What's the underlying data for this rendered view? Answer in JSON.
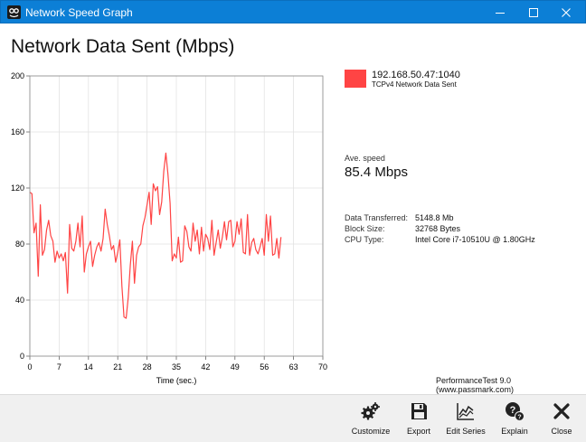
{
  "window": {
    "title": "Network Speed Graph"
  },
  "header": {
    "title": "Network Data Sent (Mbps)"
  },
  "legend": {
    "connection": "192.168.50.47:1040",
    "series": "TCPv4 Network Data Sent",
    "color": "#ff4444"
  },
  "summary": {
    "ave_label": "Ave. speed",
    "ave_value": "85.4 Mbps"
  },
  "stats": [
    {
      "key": "Data Transferred:",
      "value": "5148.8 Mb"
    },
    {
      "key": "Block Size:",
      "value": "32768 Bytes"
    },
    {
      "key": "CPU Type:",
      "value": "Intel Core i7-10510U @ 1.80GHz"
    }
  ],
  "credit": "PerformanceTest 9.0 (www.passmark.com)",
  "toolbar": {
    "customize": "Customize",
    "export": "Export",
    "edit_series": "Edit Series",
    "explain": "Explain",
    "close": "Close"
  },
  "chart_data": {
    "type": "line",
    "xlabel": "Time (sec.)",
    "ylabel": "",
    "xlim": [
      0,
      70
    ],
    "ylim": [
      0,
      200
    ],
    "xticks": [
      0,
      7,
      14,
      21,
      28,
      35,
      42,
      49,
      56,
      63,
      70
    ],
    "yticks": [
      0,
      40,
      80,
      120,
      160,
      200
    ],
    "grid": true,
    "series": [
      {
        "name": "TCPv4 Network Data Sent",
        "color": "#ff4444",
        "x": [
          0,
          0.5,
          1,
          1.5,
          2,
          2.5,
          3,
          3.5,
          4,
          4.5,
          5,
          5.5,
          6,
          6.5,
          7,
          7.5,
          8,
          8.5,
          9,
          9.5,
          10,
          10.5,
          11,
          11.5,
          12,
          12.5,
          13,
          13.5,
          14,
          14.5,
          15,
          15.5,
          16,
          16.5,
          17,
          17.5,
          18,
          18.5,
          19,
          19.5,
          20,
          20.5,
          21,
          21.5,
          22,
          22.5,
          23,
          23.5,
          24,
          24.5,
          25,
          25.5,
          26,
          26.5,
          27,
          27.5,
          28,
          28.5,
          29,
          29.5,
          30,
          30.5,
          31,
          31.5,
          32,
          32.5,
          33,
          33.5,
          34,
          34.5,
          35,
          35.5,
          36,
          36.5,
          37,
          37.5,
          38,
          38.5,
          39,
          39.5,
          40,
          40.5,
          41,
          41.5,
          42,
          42.5,
          43,
          43.5,
          44,
          44.5,
          45,
          45.5,
          46,
          46.5,
          47,
          47.5,
          48,
          48.5,
          49,
          49.5,
          50,
          50.5,
          51,
          51.5,
          52,
          52.5,
          53,
          53.5,
          54,
          54.5,
          55,
          55.5,
          56,
          56.5,
          57,
          57.5,
          58,
          58.5,
          59,
          59.5,
          60
        ],
        "values": [
          117,
          116,
          88,
          95,
          57,
          108,
          72,
          76,
          90,
          97,
          86,
          82,
          67,
          75,
          70,
          73,
          68,
          74,
          45,
          94,
          77,
          75,
          82,
          95,
          78,
          100,
          60,
          73,
          78,
          82,
          64,
          72,
          78,
          81,
          75,
          84,
          105,
          94,
          86,
          76,
          79,
          67,
          74,
          83,
          50,
          28,
          27,
          42,
          65,
          82,
          52,
          72,
          78,
          80,
          93,
          99,
          108,
          117,
          94,
          123,
          118,
          121,
          101,
          110,
          132,
          145,
          130,
          109,
          68,
          73,
          70,
          85,
          67,
          68,
          93,
          89,
          78,
          75,
          95,
          82,
          90,
          73,
          92,
          75,
          87,
          84,
          76,
          97,
          72,
          81,
          90,
          77,
          85,
          96,
          83,
          96,
          97,
          78,
          82,
          96,
          87,
          98,
          74,
          73,
          101,
          72,
          81,
          84,
          76,
          73,
          78,
          84,
          72,
          101,
          82,
          100,
          72,
          73,
          84,
          70,
          85
        ]
      }
    ]
  }
}
